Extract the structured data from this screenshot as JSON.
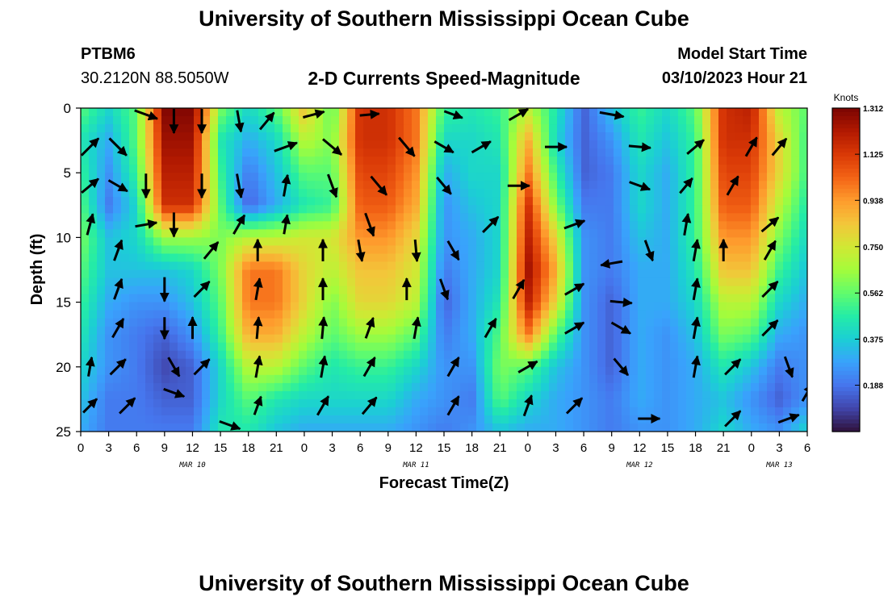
{
  "header": {
    "title": "University of Southern Mississippi Ocean Cube",
    "station_name": "PTBM6",
    "station_coords": "30.2120N  88.5050W",
    "plot_title": "2-D Currents Speed-Magnitude",
    "model_start_label": "Model Start Time",
    "model_start_time": "03/10/2023 Hour 21"
  },
  "footer": {
    "title": "University of Southern Mississippi Ocean Cube"
  },
  "colorbar": {
    "unit_label": "Knots",
    "ticks": [
      "0.188",
      "0.375",
      "0.562",
      "0.750",
      "0.938",
      "1.125",
      "1.312"
    ],
    "min": 0.0,
    "max": 1.312
  },
  "chart_data": {
    "type": "heatmap",
    "xlabel": "Forecast Time(Z)",
    "ylabel": "Depth (ft)",
    "x_tick_labels": [
      "0",
      "3",
      "6",
      "9",
      "12",
      "15",
      "18",
      "21",
      "0",
      "3",
      "6",
      "9",
      "12",
      "15",
      "18",
      "21",
      "0",
      "3",
      "6",
      "9",
      "12",
      "15",
      "18",
      "21",
      "0",
      "3",
      "6"
    ],
    "x_hours": [
      0,
      3,
      6,
      9,
      12,
      15,
      18,
      21,
      24,
      27,
      30,
      33,
      36,
      39,
      42,
      45,
      48,
      51,
      54,
      57,
      60,
      63,
      66,
      69,
      72,
      75,
      78
    ],
    "xlim": [
      0,
      78
    ],
    "day_labels": [
      {
        "label": "MAR 10",
        "hour": 12
      },
      {
        "label": "MAR 11",
        "hour": 36
      },
      {
        "label": "MAR 12",
        "hour": 60
      },
      {
        "label": "MAR 13",
        "hour": 75
      }
    ],
    "y_ticks": [
      0,
      5,
      10,
      15,
      20,
      25
    ],
    "ylim": [
      0,
      25
    ],
    "y_inverted": true,
    "colormap": [
      "#30123b",
      "#4145ab",
      "#4675ed",
      "#39a2fc",
      "#1bcfd4",
      "#24eca6",
      "#61fc6c",
      "#a4fc3b",
      "#d1e834",
      "#f3c63a",
      "#fe9b2d",
      "#f36315",
      "#d93806",
      "#b11901",
      "#7a0402"
    ],
    "grid_hours": [
      0,
      3,
      6,
      9,
      12,
      15,
      18,
      21,
      24,
      27,
      30,
      33,
      36,
      39,
      42,
      45,
      48,
      51,
      54,
      57,
      60,
      63,
      66,
      69,
      72,
      75,
      78
    ],
    "grid_depths": [
      0,
      2.5,
      5,
      7.5,
      10,
      12.5,
      15,
      17.5,
      20,
      22.5,
      25
    ],
    "speed_knots": [
      [
        0.55,
        0.4,
        0.55,
        1.3,
        1.3,
        0.6,
        0.4,
        0.55,
        0.85,
        0.55,
        1.15,
        1.15,
        1.0,
        0.5,
        0.45,
        0.5,
        0.7,
        0.45,
        0.15,
        0.35,
        0.5,
        0.4,
        0.55,
        1.15,
        1.2,
        0.7,
        0.55
      ],
      [
        0.45,
        0.3,
        0.55,
        1.25,
        1.25,
        0.45,
        0.3,
        0.4,
        0.7,
        0.6,
        1.15,
        1.15,
        1.0,
        0.4,
        0.4,
        0.45,
        0.9,
        0.4,
        0.15,
        0.25,
        0.45,
        0.35,
        0.5,
        1.15,
        1.15,
        0.8,
        0.5
      ],
      [
        0.5,
        0.25,
        0.5,
        1.2,
        1.2,
        0.5,
        0.2,
        0.35,
        0.55,
        0.55,
        1.1,
        1.1,
        0.95,
        0.3,
        0.4,
        0.4,
        1.0,
        0.5,
        0.15,
        0.2,
        0.4,
        0.3,
        0.5,
        1.1,
        1.1,
        0.8,
        0.5
      ],
      [
        0.55,
        0.2,
        0.4,
        1.15,
        1.15,
        0.55,
        0.15,
        0.3,
        0.45,
        0.5,
        1.05,
        1.05,
        0.9,
        0.25,
        0.35,
        0.4,
        1.15,
        0.6,
        0.2,
        0.2,
        0.4,
        0.3,
        0.5,
        1.05,
        1.05,
        0.7,
        0.45
      ],
      [
        0.6,
        0.35,
        0.4,
        0.65,
        0.65,
        0.6,
        0.7,
        0.7,
        0.75,
        0.75,
        0.95,
        0.95,
        0.8,
        0.25,
        0.3,
        0.4,
        1.2,
        0.8,
        0.25,
        0.2,
        0.35,
        0.3,
        0.5,
        0.95,
        0.95,
        0.6,
        0.4
      ],
      [
        0.55,
        0.35,
        0.35,
        0.35,
        0.4,
        0.6,
        1.0,
        1.0,
        0.8,
        0.7,
        0.85,
        0.85,
        0.75,
        0.2,
        0.3,
        0.4,
        1.25,
        0.9,
        0.25,
        0.2,
        0.3,
        0.3,
        0.45,
        0.85,
        0.85,
        0.5,
        0.35
      ],
      [
        0.5,
        0.3,
        0.25,
        0.25,
        0.35,
        0.55,
        1.0,
        1.0,
        0.8,
        0.6,
        0.8,
        0.8,
        0.7,
        0.15,
        0.3,
        0.45,
        1.2,
        0.8,
        0.25,
        0.15,
        0.3,
        0.3,
        0.4,
        0.7,
        0.7,
        0.4,
        0.3
      ],
      [
        0.45,
        0.25,
        0.2,
        0.15,
        0.25,
        0.5,
        0.9,
        0.9,
        0.7,
        0.55,
        0.65,
        0.65,
        0.55,
        0.2,
        0.3,
        0.55,
        1.0,
        0.55,
        0.25,
        0.15,
        0.3,
        0.25,
        0.35,
        0.6,
        0.55,
        0.3,
        0.25
      ],
      [
        0.4,
        0.25,
        0.2,
        0.1,
        0.15,
        0.4,
        0.7,
        0.7,
        0.55,
        0.45,
        0.5,
        0.5,
        0.4,
        0.25,
        0.25,
        0.6,
        0.55,
        0.35,
        0.25,
        0.15,
        0.3,
        0.25,
        0.3,
        0.45,
        0.35,
        0.2,
        0.25
      ],
      [
        0.35,
        0.2,
        0.2,
        0.15,
        0.15,
        0.4,
        0.55,
        0.45,
        0.4,
        0.4,
        0.4,
        0.4,
        0.3,
        0.25,
        0.2,
        0.55,
        0.4,
        0.3,
        0.25,
        0.2,
        0.3,
        0.25,
        0.3,
        0.35,
        0.25,
        0.15,
        0.25
      ],
      [
        0.3,
        0.2,
        0.2,
        0.2,
        0.2,
        0.45,
        0.45,
        0.35,
        0.3,
        0.3,
        0.3,
        0.3,
        0.25,
        0.2,
        0.25,
        0.35,
        0.3,
        0.3,
        0.25,
        0.2,
        0.25,
        0.25,
        0.3,
        0.4,
        0.3,
        0.25,
        0.4
      ]
    ],
    "vectors": [
      {
        "hour": 1,
        "depth": 3,
        "dir": 45,
        "len": 1.0
      },
      {
        "hour": 7,
        "depth": 0.5,
        "dir": 110,
        "len": 1.0
      },
      {
        "hour": 10,
        "depth": 1,
        "dir": 180,
        "len": 1.0
      },
      {
        "hour": 13,
        "depth": 1,
        "dir": 180,
        "len": 1.0
      },
      {
        "hour": 17,
        "depth": 1,
        "dir": 170,
        "len": 0.9
      },
      {
        "hour": 20,
        "depth": 1,
        "dir": 40,
        "len": 0.9
      },
      {
        "hour": 25,
        "depth": 0.5,
        "dir": 75,
        "len": 0.9
      },
      {
        "hour": 31,
        "depth": 0.5,
        "dir": 85,
        "len": 0.8
      },
      {
        "hour": 40,
        "depth": 0.5,
        "dir": 110,
        "len": 0.8
      },
      {
        "hour": 47,
        "depth": 0.5,
        "dir": 60,
        "len": 0.9
      },
      {
        "hour": 57,
        "depth": 0.5,
        "dir": 100,
        "len": 1.0
      },
      {
        "hour": 4,
        "depth": 3,
        "dir": 135,
        "len": 1.0
      },
      {
        "hour": 22,
        "depth": 3,
        "dir": 70,
        "len": 1.0
      },
      {
        "hour": 27,
        "depth": 3,
        "dir": 130,
        "len": 1.0
      },
      {
        "hour": 35,
        "depth": 3,
        "dir": 140,
        "len": 1.0
      },
      {
        "hour": 39,
        "depth": 3,
        "dir": 120,
        "len": 0.9
      },
      {
        "hour": 43,
        "depth": 3,
        "dir": 60,
        "len": 0.9
      },
      {
        "hour": 51,
        "depth": 3,
        "dir": 90,
        "len": 0.9
      },
      {
        "hour": 60,
        "depth": 3,
        "dir": 95,
        "len": 0.9
      },
      {
        "hour": 66,
        "depth": 3,
        "dir": 50,
        "len": 0.9
      },
      {
        "hour": 72,
        "depth": 3,
        "dir": 30,
        "len": 0.9
      },
      {
        "hour": 75,
        "depth": 3,
        "dir": 40,
        "len": 0.9
      },
      {
        "hour": 1,
        "depth": 6,
        "dir": 50,
        "len": 0.9
      },
      {
        "hour": 4,
        "depth": 6,
        "dir": 120,
        "len": 0.9
      },
      {
        "hour": 7,
        "depth": 6,
        "dir": 180,
        "len": 1.0
      },
      {
        "hour": 13,
        "depth": 6,
        "dir": 180,
        "len": 1.0
      },
      {
        "hour": 17,
        "depth": 6,
        "dir": 170,
        "len": 1.0
      },
      {
        "hour": 22,
        "depth": 6,
        "dir": 10,
        "len": 0.9
      },
      {
        "hour": 27,
        "depth": 6,
        "dir": 160,
        "len": 1.0
      },
      {
        "hour": 32,
        "depth": 6,
        "dir": 140,
        "len": 1.0
      },
      {
        "hour": 39,
        "depth": 6,
        "dir": 140,
        "len": 0.9
      },
      {
        "hour": 47,
        "depth": 6,
        "dir": 90,
        "len": 0.9
      },
      {
        "hour": 60,
        "depth": 6,
        "dir": 110,
        "len": 0.9
      },
      {
        "hour": 65,
        "depth": 6,
        "dir": 40,
        "len": 0.8
      },
      {
        "hour": 70,
        "depth": 6,
        "dir": 30,
        "len": 0.9
      },
      {
        "hour": 1,
        "depth": 9,
        "dir": 15,
        "len": 0.9
      },
      {
        "hour": 7,
        "depth": 9,
        "dir": 80,
        "len": 0.9
      },
      {
        "hour": 10,
        "depth": 9,
        "dir": 180,
        "len": 1.0
      },
      {
        "hour": 17,
        "depth": 9,
        "dir": 30,
        "len": 0.9
      },
      {
        "hour": 22,
        "depth": 9,
        "dir": 10,
        "len": 0.8
      },
      {
        "hour": 31,
        "depth": 9,
        "dir": 160,
        "len": 1.0
      },
      {
        "hour": 44,
        "depth": 9,
        "dir": 45,
        "len": 0.9
      },
      {
        "hour": 53,
        "depth": 9,
        "dir": 70,
        "len": 0.9
      },
      {
        "hour": 65,
        "depth": 9,
        "dir": 10,
        "len": 0.9
      },
      {
        "hour": 74,
        "depth": 9,
        "dir": 50,
        "len": 0.9
      },
      {
        "hour": 4,
        "depth": 11,
        "dir": 20,
        "len": 0.9
      },
      {
        "hour": 14,
        "depth": 11,
        "dir": 40,
        "len": 0.9
      },
      {
        "hour": 19,
        "depth": 11,
        "dir": 0,
        "len": 0.9
      },
      {
        "hour": 26,
        "depth": 11,
        "dir": 0,
        "len": 0.9
      },
      {
        "hour": 30,
        "depth": 11,
        "dir": 170,
        "len": 0.9
      },
      {
        "hour": 36,
        "depth": 11,
        "dir": 175,
        "len": 0.9
      },
      {
        "hour": 40,
        "depth": 11,
        "dir": 150,
        "len": 0.9
      },
      {
        "hour": 57,
        "depth": 12,
        "dir": 260,
        "len": 0.9
      },
      {
        "hour": 61,
        "depth": 11,
        "dir": 160,
        "len": 0.9
      },
      {
        "hour": 66,
        "depth": 11,
        "dir": 10,
        "len": 0.9
      },
      {
        "hour": 69,
        "depth": 11,
        "dir": 0,
        "len": 0.9
      },
      {
        "hour": 74,
        "depth": 11,
        "dir": 30,
        "len": 0.9
      },
      {
        "hour": 4,
        "depth": 14,
        "dir": 20,
        "len": 0.9
      },
      {
        "hour": 9,
        "depth": 14,
        "dir": 180,
        "len": 1.0
      },
      {
        "hour": 13,
        "depth": 14,
        "dir": 45,
        "len": 0.9
      },
      {
        "hour": 19,
        "depth": 14,
        "dir": 10,
        "len": 0.9
      },
      {
        "hour": 26,
        "depth": 14,
        "dir": 0,
        "len": 0.9
      },
      {
        "hour": 35,
        "depth": 14,
        "dir": 0,
        "len": 0.9
      },
      {
        "hour": 39,
        "depth": 14,
        "dir": 160,
        "len": 0.9
      },
      {
        "hour": 47,
        "depth": 14,
        "dir": 30,
        "len": 0.9
      },
      {
        "hour": 53,
        "depth": 14,
        "dir": 60,
        "len": 0.9
      },
      {
        "hour": 58,
        "depth": 15,
        "dir": 95,
        "len": 0.9
      },
      {
        "hour": 66,
        "depth": 14,
        "dir": 10,
        "len": 0.9
      },
      {
        "hour": 74,
        "depth": 14,
        "dir": 45,
        "len": 0.9
      },
      {
        "hour": 4,
        "depth": 17,
        "dir": 30,
        "len": 0.9
      },
      {
        "hour": 9,
        "depth": 17,
        "dir": 180,
        "len": 0.9
      },
      {
        "hour": 12,
        "depth": 17,
        "dir": 0,
        "len": 0.9
      },
      {
        "hour": 19,
        "depth": 17,
        "dir": 5,
        "len": 0.9
      },
      {
        "hour": 26,
        "depth": 17,
        "dir": 5,
        "len": 0.9
      },
      {
        "hour": 31,
        "depth": 17,
        "dir": 20,
        "len": 0.9
      },
      {
        "hour": 36,
        "depth": 17,
        "dir": 10,
        "len": 0.9
      },
      {
        "hour": 44,
        "depth": 17,
        "dir": 30,
        "len": 0.9
      },
      {
        "hour": 53,
        "depth": 17,
        "dir": 60,
        "len": 0.9
      },
      {
        "hour": 58,
        "depth": 17,
        "dir": 120,
        "len": 0.9
      },
      {
        "hour": 66,
        "depth": 17,
        "dir": 10,
        "len": 0.9
      },
      {
        "hour": 74,
        "depth": 17,
        "dir": 45,
        "len": 0.9
      },
      {
        "hour": 1,
        "depth": 20,
        "dir": 10,
        "len": 0.8
      },
      {
        "hour": 4,
        "depth": 20,
        "dir": 45,
        "len": 0.9
      },
      {
        "hour": 10,
        "depth": 20,
        "dir": 150,
        "len": 0.9
      },
      {
        "hour": 13,
        "depth": 20,
        "dir": 45,
        "len": 0.9
      },
      {
        "hour": 19,
        "depth": 20,
        "dir": 10,
        "len": 0.9
      },
      {
        "hour": 26,
        "depth": 20,
        "dir": 10,
        "len": 0.9
      },
      {
        "hour": 31,
        "depth": 20,
        "dir": 30,
        "len": 0.9
      },
      {
        "hour": 40,
        "depth": 20,
        "dir": 30,
        "len": 0.9
      },
      {
        "hour": 48,
        "depth": 20,
        "dir": 60,
        "len": 0.9
      },
      {
        "hour": 58,
        "depth": 20,
        "dir": 140,
        "len": 0.9
      },
      {
        "hour": 66,
        "depth": 20,
        "dir": 10,
        "len": 0.9
      },
      {
        "hour": 70,
        "depth": 20,
        "dir": 45,
        "len": 0.9
      },
      {
        "hour": 76,
        "depth": 20,
        "dir": 160,
        "len": 0.9
      },
      {
        "hour": 1,
        "depth": 23,
        "dir": 45,
        "len": 0.8
      },
      {
        "hour": 5,
        "depth": 23,
        "dir": 45,
        "len": 0.9
      },
      {
        "hour": 10,
        "depth": 22,
        "dir": 110,
        "len": 0.9
      },
      {
        "hour": 16,
        "depth": 24.5,
        "dir": 110,
        "len": 0.9
      },
      {
        "hour": 19,
        "depth": 23,
        "dir": 20,
        "len": 0.8
      },
      {
        "hour": 26,
        "depth": 23,
        "dir": 30,
        "len": 0.9
      },
      {
        "hour": 31,
        "depth": 23,
        "dir": 40,
        "len": 0.9
      },
      {
        "hour": 40,
        "depth": 23,
        "dir": 30,
        "len": 0.9
      },
      {
        "hour": 48,
        "depth": 23,
        "dir": 20,
        "len": 0.9
      },
      {
        "hour": 53,
        "depth": 23,
        "dir": 45,
        "len": 0.9
      },
      {
        "hour": 61,
        "depth": 24,
        "dir": 90,
        "len": 0.9
      },
      {
        "hour": 70,
        "depth": 24,
        "dir": 45,
        "len": 0.9
      },
      {
        "hour": 76,
        "depth": 24,
        "dir": 70,
        "len": 0.9
      },
      {
        "hour": 78,
        "depth": 22,
        "dir": 30,
        "len": 0.8
      }
    ]
  }
}
